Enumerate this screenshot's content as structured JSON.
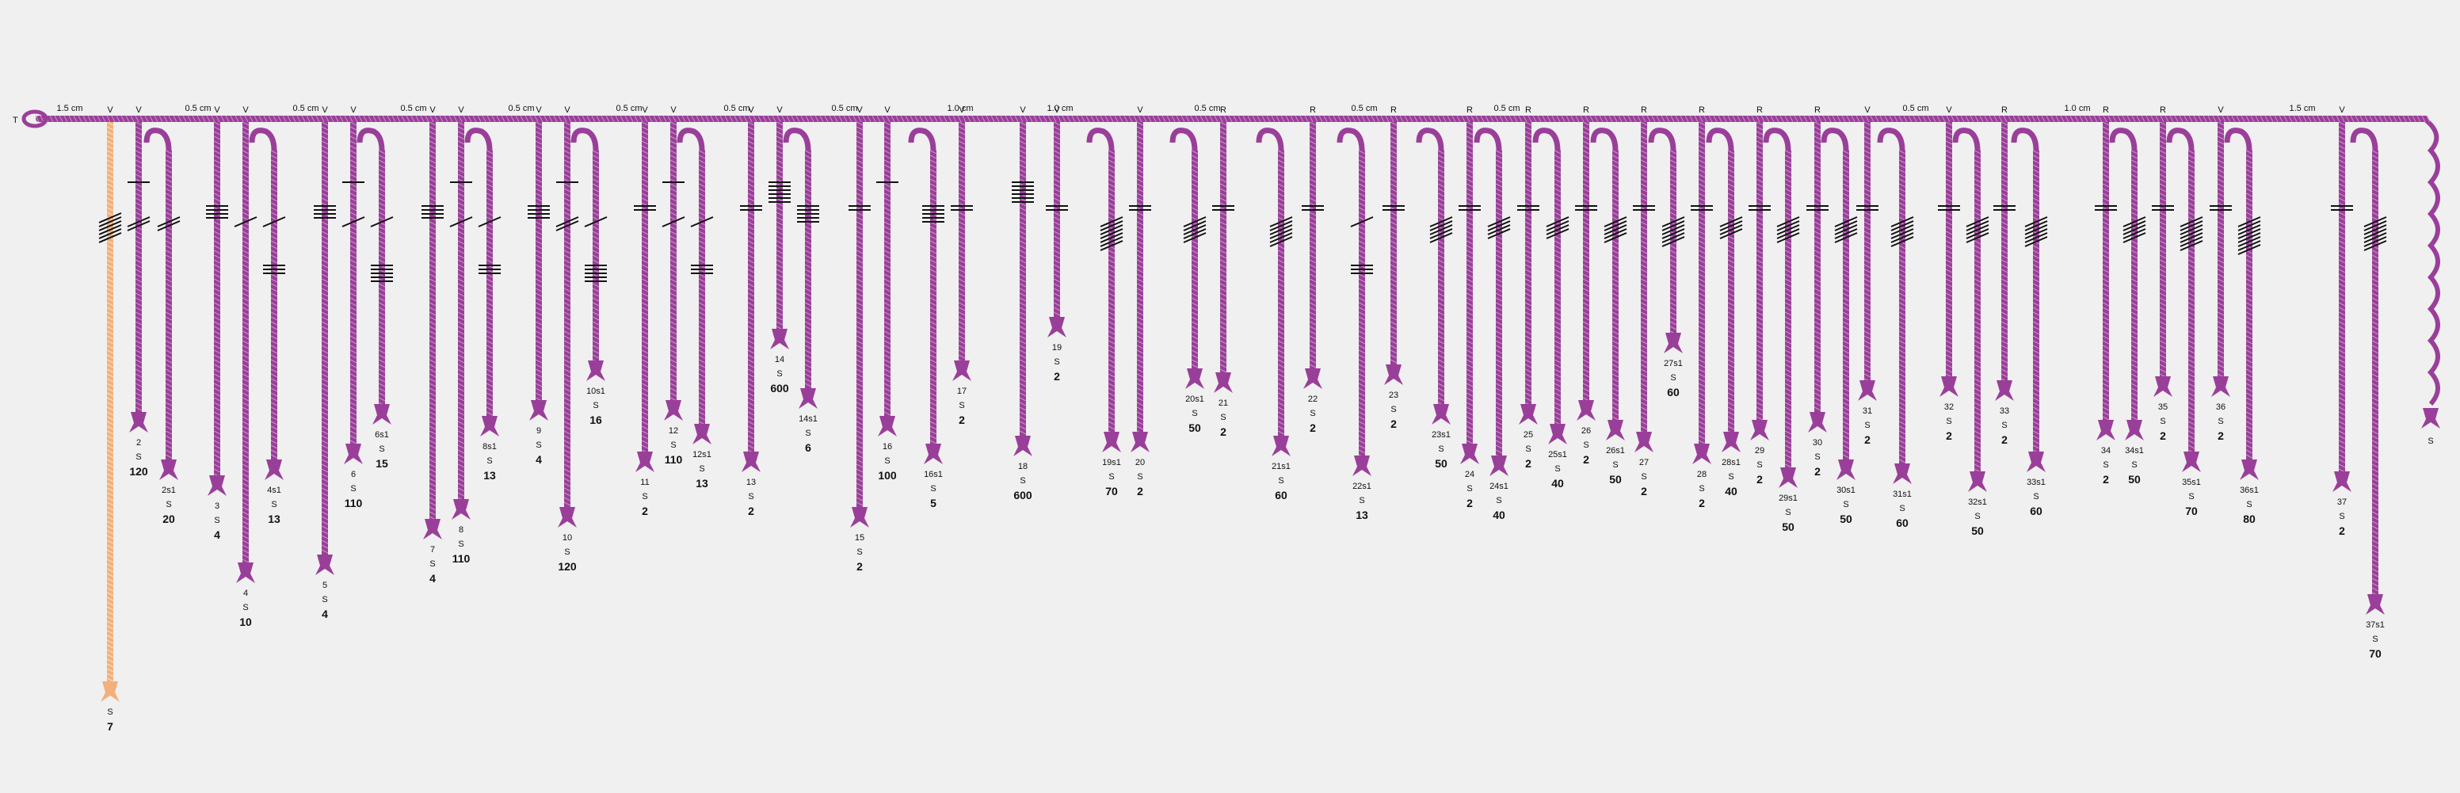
{
  "primary_label": "T",
  "spacings": [
    "1.5 cm",
    "0.5 cm",
    "0.5 cm",
    "0.5 cm",
    "0.5 cm",
    "0.5 cm",
    "0.5 cm",
    "0.5 cm",
    "1.0 cm",
    "1.0 cm",
    "0.5 cm",
    "0.5 cm",
    "0.5 cm",
    "0.5 cm",
    "1.0 cm",
    "1.5 cm"
  ],
  "cord_color": "#9a3f99",
  "tan_color": "#f2b07a",
  "knot_color": "#111111",
  "cords": [
    {
      "type": "V",
      "id": "",
      "sub": "S",
      "value": "7",
      "color": "tan",
      "kind": "straight",
      "knots": "clusters"
    },
    {
      "type": "V",
      "id": "2",
      "sub": "S",
      "value": "120"
    },
    {
      "type": "",
      "id": "2s1",
      "sub": "S",
      "value": "20",
      "kind": "sub"
    },
    {
      "type": "V",
      "id": "3",
      "sub": "S",
      "value": "4"
    },
    {
      "type": "V",
      "id": "4",
      "sub": "S",
      "value": "10"
    },
    {
      "type": "",
      "id": "4s1",
      "sub": "S",
      "value": "13",
      "kind": "sub"
    },
    {
      "type": "V",
      "id": "5",
      "sub": "S",
      "value": "4"
    },
    {
      "type": "V",
      "id": "6",
      "sub": "S",
      "value": "110"
    },
    {
      "type": "",
      "id": "6s1",
      "sub": "S",
      "value": "15",
      "kind": "sub"
    },
    {
      "type": "V",
      "id": "7",
      "sub": "S",
      "value": "4"
    },
    {
      "type": "V",
      "id": "8",
      "sub": "S",
      "value": "110"
    },
    {
      "type": "",
      "id": "8s1",
      "sub": "S",
      "value": "13",
      "kind": "sub"
    },
    {
      "type": "V",
      "id": "9",
      "sub": "S",
      "value": "4"
    },
    {
      "type": "V",
      "id": "10",
      "sub": "S",
      "value": "120"
    },
    {
      "type": "",
      "id": "10s1",
      "sub": "S",
      "value": "16",
      "kind": "sub"
    },
    {
      "type": "V",
      "id": "11",
      "sub": "S",
      "value": "2"
    },
    {
      "type": "V",
      "id": "12",
      "sub": "S",
      "value": "110"
    },
    {
      "type": "",
      "id": "12s1",
      "sub": "S",
      "value": "13",
      "kind": "sub"
    },
    {
      "type": "V",
      "id": "13",
      "sub": "S",
      "value": "2"
    },
    {
      "type": "V",
      "id": "14",
      "sub": "S",
      "value": "600"
    },
    {
      "type": "",
      "id": "14s1",
      "sub": "S",
      "value": "6",
      "kind": "sub"
    },
    {
      "type": "V",
      "id": "15",
      "sub": "S",
      "value": "2"
    },
    {
      "type": "V",
      "id": "16",
      "sub": "S",
      "value": "100"
    },
    {
      "type": "",
      "id": "16s1",
      "sub": "S",
      "value": "5",
      "kind": "sub"
    },
    {
      "type": "V",
      "id": "17",
      "sub": "S",
      "value": "2"
    },
    {
      "type": "V",
      "id": "18",
      "sub": "S",
      "value": "600"
    },
    {
      "type": "V",
      "id": "19",
      "sub": "S",
      "value": "2"
    },
    {
      "type": "",
      "id": "19s1",
      "sub": "S",
      "value": "70",
      "kind": "sub"
    },
    {
      "type": "V",
      "id": "20",
      "sub": "S",
      "value": "2"
    },
    {
      "type": "",
      "id": "20s1",
      "sub": "S",
      "value": "50",
      "kind": "sub"
    },
    {
      "type": "R",
      "id": "21",
      "sub": "S",
      "value": "2"
    },
    {
      "type": "",
      "id": "21s1",
      "sub": "S",
      "value": "60",
      "kind": "sub"
    },
    {
      "type": "R",
      "id": "22",
      "sub": "S",
      "value": "2"
    },
    {
      "type": "",
      "id": "22s1",
      "sub": "S",
      "value": "13",
      "kind": "sub"
    },
    {
      "type": "R",
      "id": "23",
      "sub": "S",
      "value": "2"
    },
    {
      "type": "",
      "id": "23s1",
      "sub": "S",
      "value": "50",
      "kind": "sub"
    },
    {
      "type": "R",
      "id": "24",
      "sub": "S",
      "value": "2"
    },
    {
      "type": "",
      "id": "24s1",
      "sub": "S",
      "value": "40",
      "kind": "sub"
    },
    {
      "type": "R",
      "id": "25",
      "sub": "S",
      "value": "2"
    },
    {
      "type": "",
      "id": "25s1",
      "sub": "S",
      "value": "40",
      "kind": "sub"
    },
    {
      "type": "R",
      "id": "26",
      "sub": "S",
      "value": "2"
    },
    {
      "type": "",
      "id": "26s1",
      "sub": "S",
      "value": "50",
      "kind": "sub"
    },
    {
      "type": "R",
      "id": "27",
      "sub": "S",
      "value": "2"
    },
    {
      "type": "",
      "id": "27s1",
      "sub": "S",
      "value": "60",
      "kind": "sub"
    },
    {
      "type": "R",
      "id": "28",
      "sub": "S",
      "value": "2"
    },
    {
      "type": "",
      "id": "28s1",
      "sub": "S",
      "value": "40",
      "kind": "sub"
    },
    {
      "type": "R",
      "id": "29",
      "sub": "S",
      "value": "2"
    },
    {
      "type": "",
      "id": "29s1",
      "sub": "S",
      "value": "50",
      "kind": "sub"
    },
    {
      "type": "R",
      "id": "30",
      "sub": "S",
      "value": "2"
    },
    {
      "type": "",
      "id": "30s1",
      "sub": "S",
      "value": "50",
      "kind": "sub"
    },
    {
      "type": "V",
      "id": "31",
      "sub": "S",
      "value": "2"
    },
    {
      "type": "",
      "id": "31s1",
      "sub": "S",
      "value": "60",
      "kind": "sub"
    },
    {
      "type": "V",
      "id": "32",
      "sub": "S",
      "value": "2"
    },
    {
      "type": "",
      "id": "32s1",
      "sub": "S",
      "value": "50",
      "kind": "sub"
    },
    {
      "type": "R",
      "id": "33",
      "sub": "S",
      "value": "2"
    },
    {
      "type": "",
      "id": "33s1",
      "sub": "S",
      "value": "60",
      "kind": "sub"
    },
    {
      "type": "R",
      "id": "34",
      "sub": "S",
      "value": "2"
    },
    {
      "type": "",
      "id": "34s1",
      "sub": "S",
      "value": "50",
      "kind": "sub"
    },
    {
      "type": "R",
      "id": "35",
      "sub": "S",
      "value": "2"
    },
    {
      "type": "",
      "id": "35s1",
      "sub": "S",
      "value": "70",
      "kind": "sub"
    },
    {
      "type": "V",
      "id": "36",
      "sub": "S",
      "value": "2"
    },
    {
      "type": "",
      "id": "36s1",
      "sub": "S",
      "value": "80",
      "kind": "sub"
    },
    {
      "type": "V",
      "id": "37",
      "sub": "S",
      "value": "2"
    },
    {
      "type": "",
      "id": "37s1",
      "sub": "S",
      "value": "70",
      "kind": "sub"
    },
    {
      "type": "",
      "id": "",
      "sub": "S",
      "value": "",
      "kind": "wavy"
    }
  ]
}
